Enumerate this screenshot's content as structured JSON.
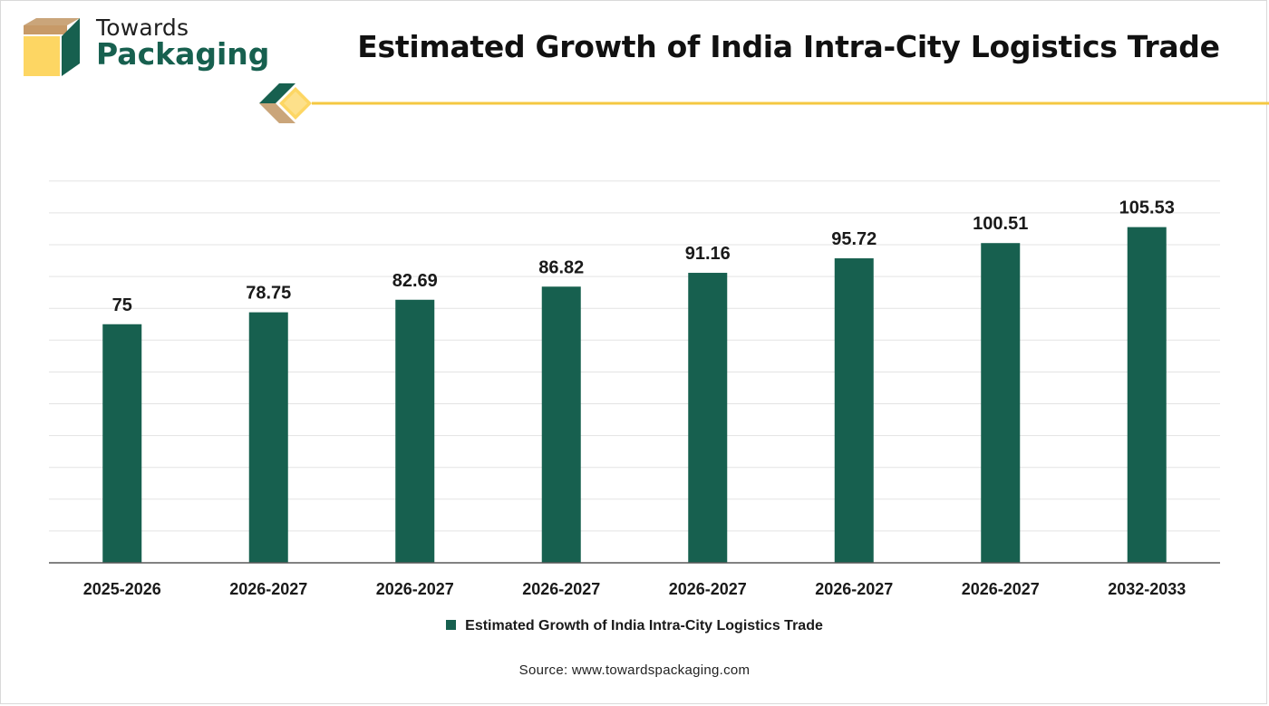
{
  "brand": {
    "line1": "Towards",
    "line2": "Packaging"
  },
  "colors": {
    "bar": "#17604f",
    "accent": "#f5c842",
    "brand": "#17604f"
  },
  "legend": {
    "label": "Estimated Growth of India Intra-City Logistics Trade"
  },
  "source": "Source: www.towardspackaging.com",
  "chart_data": {
    "type": "bar",
    "title": "Estimated Growth of India Intra-City Logistics Trade",
    "categories": [
      "2025-2026",
      "2026-2027",
      "2026-2027",
      "2026-2027",
      "2026-2027",
      "2026-2027",
      "2026-2027",
      "2032-2033"
    ],
    "series": [
      {
        "name": "Estimated Growth of India Intra-City Logistics Trade",
        "values": [
          75,
          78.75,
          82.69,
          86.82,
          91.16,
          95.72,
          100.51,
          105.53
        ]
      }
    ],
    "value_labels": [
      "75",
      "78.75",
      "82.69",
      "86.82",
      "91.16",
      "95.72",
      "100.51",
      "105.53"
    ],
    "xlabel": "",
    "ylabel": "",
    "ylim": [
      0,
      120
    ],
    "grid": true,
    "legend_position": "bottom"
  }
}
